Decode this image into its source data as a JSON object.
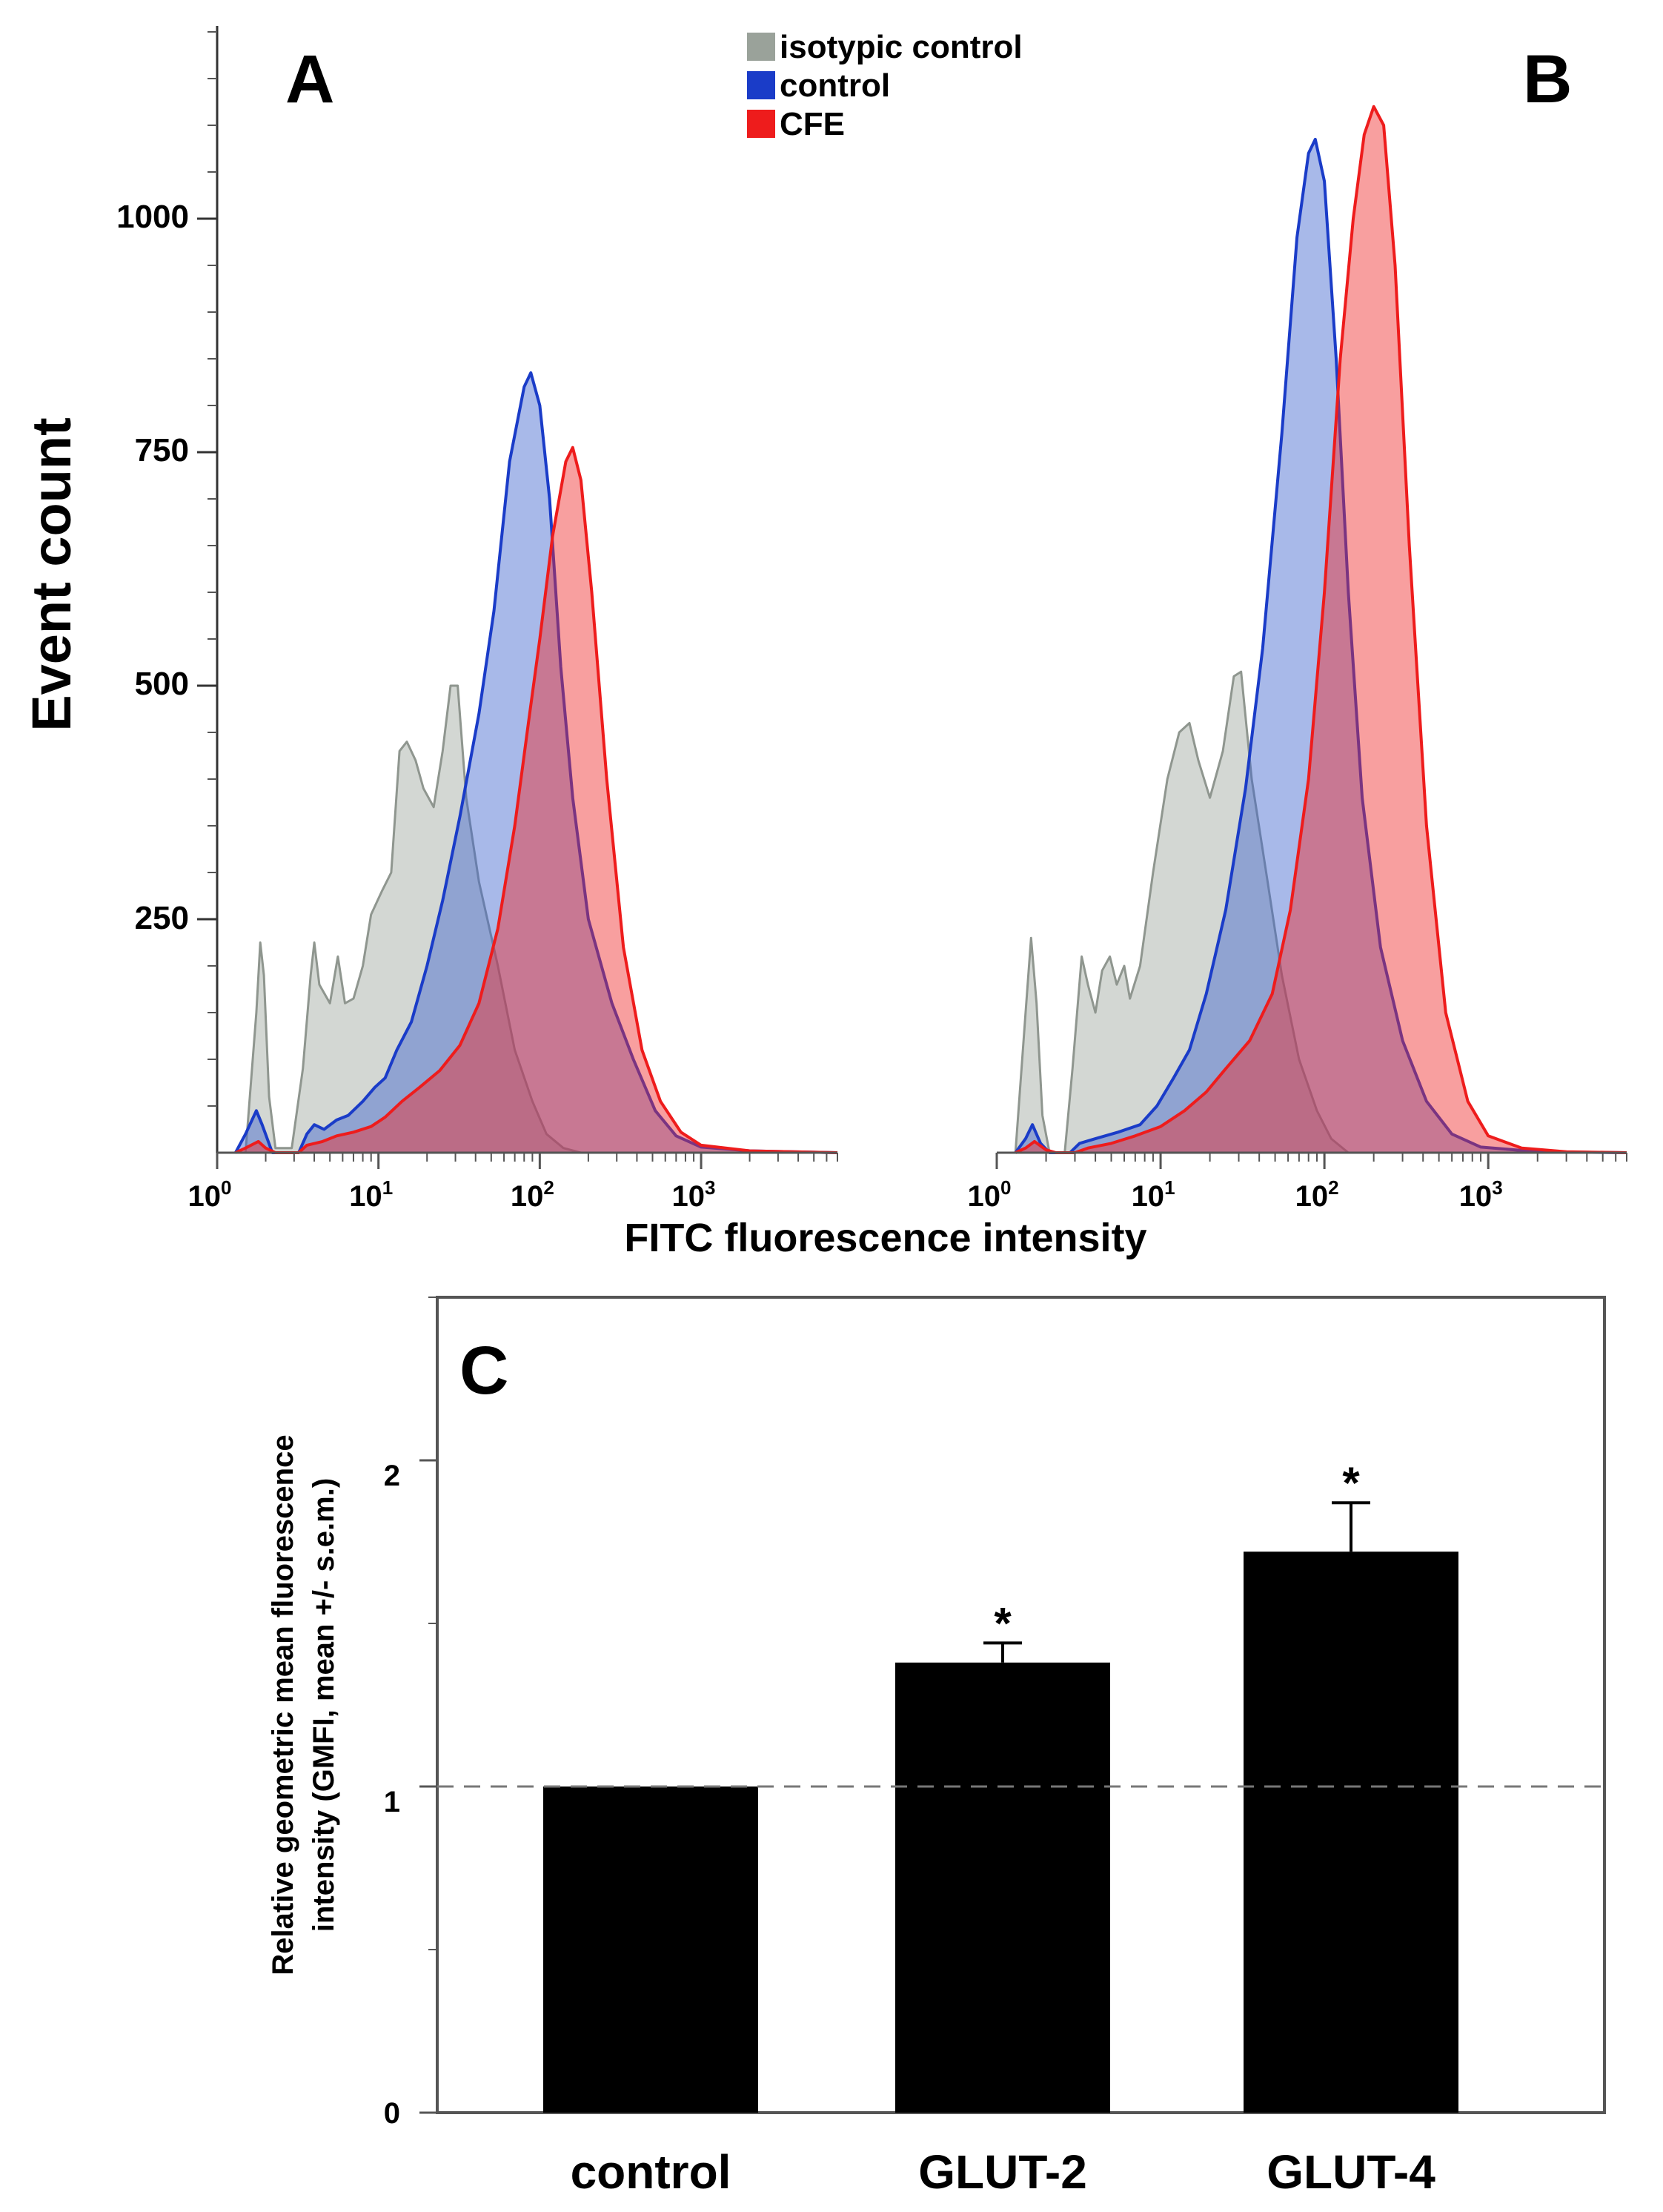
{
  "figure": {
    "legend": [
      {
        "label": "isotypic control",
        "color": "#9aa29a"
      },
      {
        "label": "control",
        "color": "#1a3cc8"
      },
      {
        "label": "CFE",
        "color": "#ee1c1c"
      }
    ],
    "shared_ylabel": "Event count",
    "shared_xlabel": "FITC fluorescence intensity"
  },
  "chart_data": [
    {
      "panel": "A",
      "type": "area",
      "xscale": "log",
      "xlim": [
        1,
        7000
      ],
      "ylim": [
        0,
        1200
      ],
      "yticks": [
        "250",
        "500",
        "750",
        "1000"
      ],
      "xticks": [
        {
          "base": "10",
          "exp": "0"
        },
        {
          "base": "10",
          "exp": "1"
        },
        {
          "base": "10",
          "exp": "2"
        },
        {
          "base": "10",
          "exp": "3"
        }
      ],
      "series": [
        {
          "name": "isotypic control",
          "points": [
            [
              1.5,
              0
            ],
            [
              1.75,
              150
            ],
            [
              1.85,
              225
            ],
            [
              1.95,
              190
            ],
            [
              2.1,
              60
            ],
            [
              2.3,
              5
            ],
            [
              2.9,
              5
            ],
            [
              3.4,
              90
            ],
            [
              3.8,
              190
            ],
            [
              4.0,
              225
            ],
            [
              4.3,
              180
            ],
            [
              5.0,
              160
            ],
            [
              5.6,
              210
            ],
            [
              6.2,
              160
            ],
            [
              7.0,
              165
            ],
            [
              8.0,
              200
            ],
            [
              9.0,
              255
            ],
            [
              10.5,
              280
            ],
            [
              12.0,
              300
            ],
            [
              13.5,
              430
            ],
            [
              15.0,
              440
            ],
            [
              17.0,
              420
            ],
            [
              19.0,
              390
            ],
            [
              22.0,
              370
            ],
            [
              25.0,
              430
            ],
            [
              28.0,
              500
            ],
            [
              31.0,
              500
            ],
            [
              35.0,
              380
            ],
            [
              42.0,
              290
            ],
            [
              55.0,
              200
            ],
            [
              70.0,
              110
            ],
            [
              90.0,
              55
            ],
            [
              110.0,
              20
            ],
            [
              140.0,
              5
            ],
            [
              180.0,
              0
            ]
          ]
        },
        {
          "name": "control",
          "points": [
            [
              1.3,
              0
            ],
            [
              1.5,
              20
            ],
            [
              1.75,
              45
            ],
            [
              1.9,
              30
            ],
            [
              2.2,
              0
            ],
            [
              3.2,
              0
            ],
            [
              3.6,
              20
            ],
            [
              4.0,
              30
            ],
            [
              4.6,
              25
            ],
            [
              5.5,
              35
            ],
            [
              6.5,
              40
            ],
            [
              8.0,
              55
            ],
            [
              9.5,
              70
            ],
            [
              11.0,
              80
            ],
            [
              13.0,
              110
            ],
            [
              16.0,
              140
            ],
            [
              20.0,
              200
            ],
            [
              25.0,
              270
            ],
            [
              32.0,
              360
            ],
            [
              42.0,
              470
            ],
            [
              52.0,
              580
            ],
            [
              65.0,
              740
            ],
            [
              80.0,
              820
            ],
            [
              88.0,
              835
            ],
            [
              100.0,
              800
            ],
            [
              115.0,
              700
            ],
            [
              135.0,
              520
            ],
            [
              160.0,
              380
            ],
            [
              200.0,
              250
            ],
            [
              280.0,
              160
            ],
            [
              380.0,
              100
            ],
            [
              520.0,
              45
            ],
            [
              700.0,
              18
            ],
            [
              1000.0,
              6
            ],
            [
              2000.0,
              2
            ],
            [
              7000.0,
              0
            ]
          ]
        },
        {
          "name": "CFE",
          "points": [
            [
              1.3,
              0
            ],
            [
              1.5,
              5
            ],
            [
              1.8,
              12
            ],
            [
              2.0,
              5
            ],
            [
              2.3,
              0
            ],
            [
              3.2,
              0
            ],
            [
              3.6,
              8
            ],
            [
              4.5,
              12
            ],
            [
              5.5,
              18
            ],
            [
              7.0,
              22
            ],
            [
              9.0,
              28
            ],
            [
              11.0,
              38
            ],
            [
              14.0,
              55
            ],
            [
              18.0,
              70
            ],
            [
              24.0,
              88
            ],
            [
              32.0,
              115
            ],
            [
              42.0,
              160
            ],
            [
              55.0,
              240
            ],
            [
              70.0,
              350
            ],
            [
              85.0,
              460
            ],
            [
              100.0,
              550
            ],
            [
              120.0,
              660
            ],
            [
              145.0,
              740
            ],
            [
              160.0,
              755
            ],
            [
              180.0,
              720
            ],
            [
              210.0,
              600
            ],
            [
              260.0,
              400
            ],
            [
              330.0,
              220
            ],
            [
              430.0,
              110
            ],
            [
              560.0,
              55
            ],
            [
              750.0,
              22
            ],
            [
              1000.0,
              8
            ],
            [
              2000.0,
              2
            ],
            [
              7000.0,
              0
            ]
          ]
        }
      ]
    },
    {
      "panel": "B",
      "type": "area",
      "xscale": "log",
      "xlim": [
        1,
        7000
      ],
      "ylim": [
        0,
        1200
      ],
      "xticks": [
        {
          "base": "10",
          "exp": "0"
        },
        {
          "base": "10",
          "exp": "1"
        },
        {
          "base": "10",
          "exp": "2"
        },
        {
          "base": "10",
          "exp": "3"
        }
      ],
      "series": [
        {
          "name": "isotypic control",
          "points": [
            [
              1.3,
              0
            ],
            [
              1.5,
              150
            ],
            [
              1.62,
              230
            ],
            [
              1.75,
              160
            ],
            [
              1.9,
              40
            ],
            [
              2.1,
              0
            ],
            [
              2.6,
              0
            ],
            [
              2.9,
              90
            ],
            [
              3.3,
              210
            ],
            [
              3.6,
              180
            ],
            [
              4.0,
              150
            ],
            [
              4.4,
              195
            ],
            [
              4.9,
              210
            ],
            [
              5.4,
              180
            ],
            [
              6.0,
              200
            ],
            [
              6.5,
              165
            ],
            [
              7.5,
              200
            ],
            [
              9.0,
              300
            ],
            [
              11.0,
              400
            ],
            [
              13.0,
              450
            ],
            [
              15.0,
              460
            ],
            [
              17.0,
              420
            ],
            [
              20.0,
              380
            ],
            [
              24.0,
              430
            ],
            [
              28.0,
              510
            ],
            [
              31.0,
              515
            ],
            [
              36.0,
              400
            ],
            [
              45.0,
              290
            ],
            [
              55.0,
              190
            ],
            [
              70.0,
              100
            ],
            [
              90.0,
              45
            ],
            [
              110.0,
              15
            ],
            [
              140.0,
              0
            ]
          ]
        },
        {
          "name": "control",
          "points": [
            [
              1.3,
              0
            ],
            [
              1.5,
              15
            ],
            [
              1.65,
              30
            ],
            [
              1.85,
              10
            ],
            [
              2.1,
              0
            ],
            [
              2.8,
              0
            ],
            [
              3.2,
              10
            ],
            [
              4.0,
              15
            ],
            [
              5.5,
              22
            ],
            [
              7.5,
              30
            ],
            [
              9.5,
              50
            ],
            [
              12.0,
              80
            ],
            [
              15.0,
              110
            ],
            [
              19.0,
              170
            ],
            [
              25.0,
              260
            ],
            [
              33.0,
              390
            ],
            [
              42.0,
              540
            ],
            [
              55.0,
              770
            ],
            [
              68.0,
              980
            ],
            [
              80.0,
              1070
            ],
            [
              88.0,
              1085
            ],
            [
              100.0,
              1040
            ],
            [
              118.0,
              850
            ],
            [
              140.0,
              600
            ],
            [
              170.0,
              380
            ],
            [
              220.0,
              220
            ],
            [
              300.0,
              120
            ],
            [
              420.0,
              55
            ],
            [
              600.0,
              20
            ],
            [
              900.0,
              6
            ],
            [
              2000.0,
              1
            ],
            [
              7000.0,
              0
            ]
          ]
        },
        {
          "name": "CFE",
          "points": [
            [
              1.3,
              0
            ],
            [
              1.5,
              5
            ],
            [
              1.7,
              12
            ],
            [
              2.0,
              3
            ],
            [
              2.3,
              0
            ],
            [
              3.0,
              0
            ],
            [
              3.6,
              5
            ],
            [
              5.0,
              10
            ],
            [
              7.0,
              18
            ],
            [
              10.0,
              28
            ],
            [
              14.0,
              45
            ],
            [
              19.0,
              65
            ],
            [
              25.0,
              90
            ],
            [
              35.0,
              120
            ],
            [
              48.0,
              170
            ],
            [
              62.0,
              260
            ],
            [
              80.0,
              400
            ],
            [
              100.0,
              600
            ],
            [
              125.0,
              850
            ],
            [
              150.0,
              1000
            ],
            [
              175.0,
              1090
            ],
            [
              200.0,
              1120
            ],
            [
              230.0,
              1100
            ],
            [
              270.0,
              950
            ],
            [
              330.0,
              650
            ],
            [
              420.0,
              350
            ],
            [
              550.0,
              150
            ],
            [
              750.0,
              55
            ],
            [
              1000.0,
              18
            ],
            [
              1600.0,
              5
            ],
            [
              3000.0,
              1
            ],
            [
              7000.0,
              0
            ]
          ]
        }
      ]
    },
    {
      "panel": "C",
      "type": "bar",
      "categories": [
        "control",
        "GLUT-2",
        "GLUT-4"
      ],
      "values": [
        1.0,
        1.38,
        1.72
      ],
      "errors": [
        0.0,
        0.06,
        0.15
      ],
      "annotations": [
        "",
        "*",
        "*"
      ],
      "ylabel": [
        "Relative geometric mean fluorescence",
        "intensity (GMFI, mean +/- s.e.m.)"
      ],
      "ylim": [
        0,
        2.5
      ],
      "yticks": [
        "0",
        "1",
        "2"
      ],
      "reference_line": 1,
      "bar_color": "#000000"
    }
  ]
}
